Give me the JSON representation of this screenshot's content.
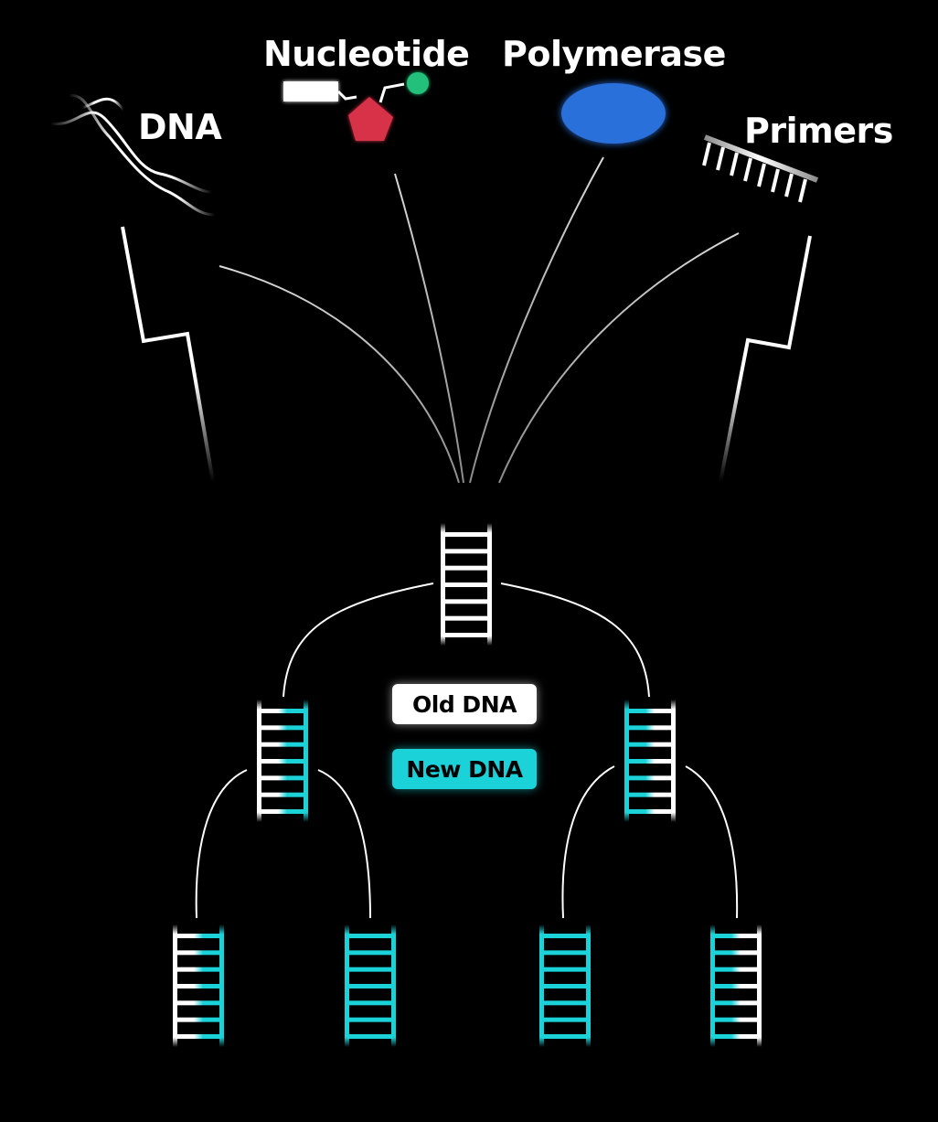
{
  "labels": {
    "dna": "DNA",
    "nucleotide": "Nucleotide",
    "polymerase": "Polymerase",
    "primers": "Primers"
  },
  "legend": {
    "old_label": "Old DNA",
    "new_label": "New DNA"
  },
  "colors": {
    "background": "#000000",
    "old_strand": "#ffffff",
    "new_strand": "#1cd2d9",
    "nucleotide_sugar": "#d8304a",
    "nucleotide_base": "#22c07a",
    "polymerase": "#2a6fdb"
  },
  "icons": [
    "dna-double-helix-icon",
    "nucleotide-icon",
    "polymerase-icon",
    "primers-icon"
  ],
  "generations": [
    {
      "name": "parent",
      "strands": [
        [
          "old",
          "old"
        ]
      ]
    },
    {
      "name": "generation-1",
      "strands": [
        [
          "old",
          "new"
        ],
        [
          "new",
          "old"
        ]
      ]
    },
    {
      "name": "generation-2",
      "strands": [
        [
          "old",
          "new"
        ],
        [
          "new",
          "new"
        ],
        [
          "new",
          "new"
        ],
        [
          "new",
          "old"
        ]
      ]
    }
  ]
}
